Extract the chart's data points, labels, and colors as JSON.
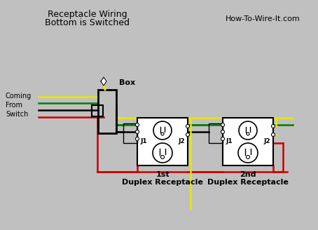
{
  "title1": "Receptacle Wiring",
  "title2": "Bottom is Switched",
  "watermark": "How-To-Wire-It.com",
  "label_switch": "Coming\nFrom\nSwitch",
  "label_box": "Box",
  "label_1st_line1": "1st",
  "label_1st_line2": "Duplex Receptacle",
  "label_2nd_line1": "2nd",
  "label_2nd_line2": "Duplex Receptacle",
  "label_j1": "J1",
  "label_j2": "J2",
  "bg_color": "#c0c0c0",
  "wire_yellow": "#e8e800",
  "wire_green": "#008000",
  "wire_black": "#000000",
  "wire_red": "#cc0000",
  "text_color": "#000000",
  "fig_w": 4.54,
  "fig_h": 3.28,
  "dpi": 100
}
